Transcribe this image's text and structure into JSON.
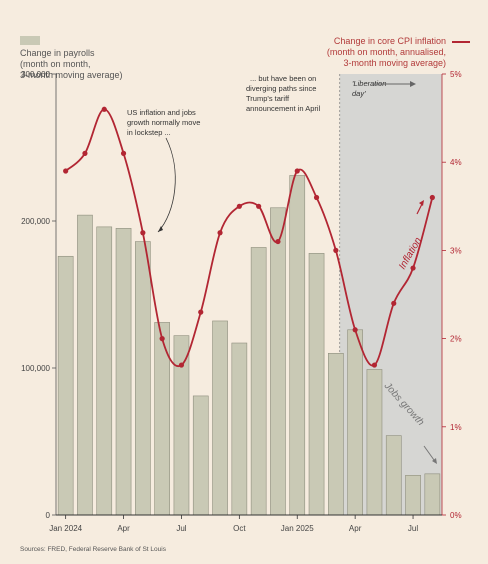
{
  "chart_data": {
    "type": "bar+line",
    "legend_left": {
      "lines": [
        "Change in payrolls",
        "(month on month,",
        "3-month moving average)"
      ],
      "color": "#c9c9b5"
    },
    "legend_right": {
      "lines": [
        "Change in core CPI inflation",
        "(month on month, annualised,",
        "3-month moving average)"
      ],
      "color": "#b22633"
    },
    "x_ticks": [
      "Jan 2024",
      "Apr",
      "Jul",
      "Oct",
      "Jan 2025",
      "Apr",
      "Jul"
    ],
    "x_tick_positions": [
      0,
      3,
      6,
      9,
      12,
      15,
      18
    ],
    "y_left": {
      "min": 0,
      "max": 300000,
      "ticks": [
        0,
        100000,
        200000,
        300000
      ],
      "tick_labels": [
        "0",
        "100,000",
        "200,000",
        "300,000"
      ]
    },
    "y_right": {
      "min": 0,
      "max": 5,
      "ticks": [
        0,
        1,
        2,
        3,
        4,
        5
      ],
      "tick_labels": [
        "0%",
        "1%",
        "2%",
        "3%",
        "4%",
        "5%"
      ]
    },
    "bars": {
      "name": "Change in payrolls",
      "values": [
        176000,
        204000,
        196000,
        195000,
        186000,
        131000,
        122000,
        81000,
        132000,
        117000,
        182000,
        209000,
        231000,
        178000,
        110000,
        126000,
        99000,
        54000,
        27000,
        28000
      ],
      "color": "#c9c9b5"
    },
    "line": {
      "name": "Change in core CPI inflation",
      "values": [
        3.9,
        4.1,
        4.6,
        4.1,
        3.2,
        2.0,
        1.7,
        2.3,
        3.2,
        3.5,
        3.5,
        3.1,
        3.9,
        3.6,
        3.0,
        2.1,
        1.7,
        2.4,
        2.8,
        3.6
      ],
      "color": "#b22633"
    },
    "shaded_region_from_index": 14.7,
    "annotations": {
      "lockstep": [
        "US inflation and jobs",
        "growth normally move",
        "in lockstep ..."
      ],
      "diverging": [
        "... but have been on",
        "diverging paths since",
        "Trump's tariff",
        "announcement in April"
      ],
      "liberation": [
        "'Liberation",
        "day'"
      ],
      "inflation_label": "Inflation",
      "jobs_label": "Jobs growth"
    },
    "source": "Sources: FRED, Federal Reserve Bank of St Louis"
  }
}
